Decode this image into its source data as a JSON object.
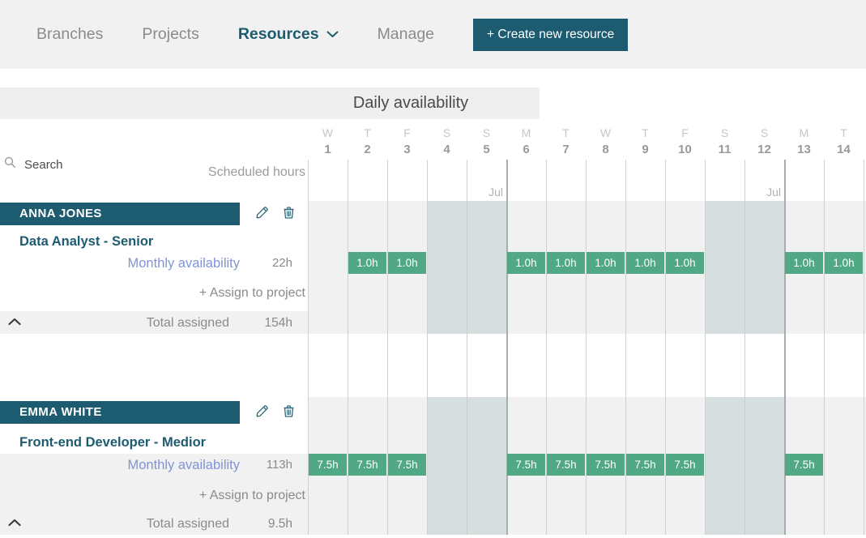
{
  "nav": {
    "items": [
      {
        "label": "Branches"
      },
      {
        "label": "Projects"
      },
      {
        "label": "Resources"
      },
      {
        "label": "Manage"
      }
    ],
    "active_item": "Resources",
    "create_button_label": "+ Create new resource"
  },
  "panel": {
    "title": "Daily availability",
    "search_placeholder": "Search",
    "scheduled_hours_label": "Scheduled hours"
  },
  "labels": {
    "monthly_availability": "Monthly availability",
    "assign_to_project": "+ Assign to project",
    "total_assigned": "Total assigned"
  },
  "calendar": {
    "month_label": "Jul",
    "days": [
      {
        "dow": "W",
        "date": "1"
      },
      {
        "dow": "T",
        "date": "2"
      },
      {
        "dow": "F",
        "date": "3"
      },
      {
        "dow": "S",
        "date": "4"
      },
      {
        "dow": "S",
        "date": "5"
      },
      {
        "dow": "M",
        "date": "6"
      },
      {
        "dow": "T",
        "date": "7"
      },
      {
        "dow": "W",
        "date": "8"
      },
      {
        "dow": "T",
        "date": "9"
      },
      {
        "dow": "F",
        "date": "10"
      },
      {
        "dow": "S",
        "date": "11"
      },
      {
        "dow": "S",
        "date": "12"
      },
      {
        "dow": "M",
        "date": "13"
      },
      {
        "dow": "T",
        "date": "14"
      }
    ],
    "weekend_indices": [
      3,
      4,
      10,
      11
    ],
    "week_start_indices": [
      5,
      12
    ]
  },
  "resources": [
    {
      "name": "ANNA JONES",
      "role": "Data Analyst - Senior",
      "monthly_hours": "22h",
      "total_hours": "154h",
      "daily": [
        "",
        "1.0h",
        "1.0h",
        "",
        "",
        "1.0h",
        "1.0h",
        "1.0h",
        "1.0h",
        "1.0h",
        "",
        "",
        "1.0h",
        "1.0h"
      ]
    },
    {
      "name": "EMMA WHITE",
      "role": "Front-end Developer - Medior",
      "monthly_hours": "113h",
      "total_hours": "9.5h",
      "daily": [
        "7.5h",
        "7.5h",
        "7.5h",
        "",
        "",
        "7.5h",
        "7.5h",
        "7.5h",
        "7.5h",
        "7.5h",
        "",
        "",
        "7.5h",
        ""
      ]
    }
  ],
  "colors": {
    "accent_teal": "#1d5b70",
    "cell_green": "#50a885",
    "weekend_shade": "#d7dee0",
    "link_blue": "#8094d6",
    "band_gray": "#f1f1f1",
    "nav_gray_text": "#8b8b8b"
  }
}
